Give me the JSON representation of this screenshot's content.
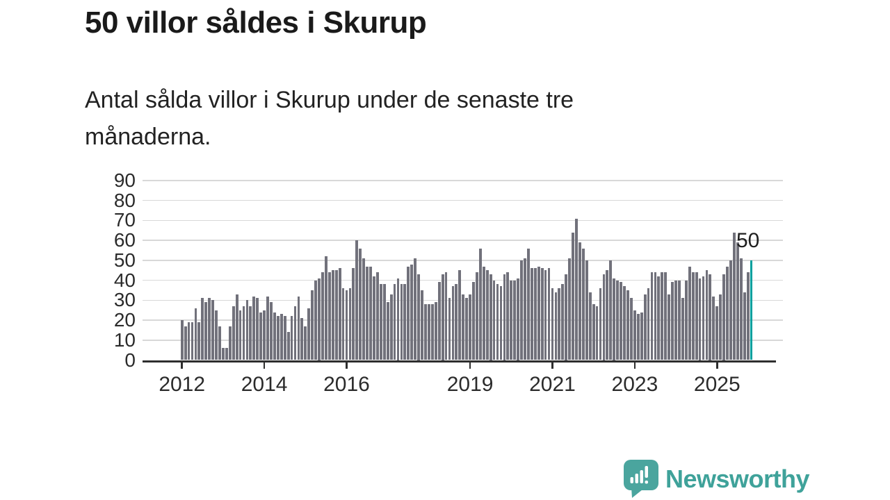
{
  "title": "50 villor såldes i Skurup",
  "subtitle": "Antal sålda villor i Skurup under de senaste tre månaderna.",
  "annotation": {
    "label": "50"
  },
  "logo": {
    "text": "Newsworthy"
  },
  "colors": {
    "bar": "#71717b",
    "highlight": "#00a09e",
    "grid": "#d8d8d8",
    "axis": "#2e2e2e",
    "text": "#1a1a1a",
    "logo": "#3fa29a"
  },
  "chart_data": {
    "type": "bar",
    "title": "50 villor såldes i Skurup",
    "subtitle": "Antal sålda villor i Skurup under de senaste tre månaderna.",
    "frequency": "monthly",
    "x_start": "2012-01",
    "x_end": "2025-11",
    "xlabel": "",
    "ylabel": "",
    "ylim": [
      0,
      90
    ],
    "yticks": [
      0,
      10,
      20,
      30,
      40,
      50,
      60,
      70,
      80,
      90
    ],
    "xtick_years": [
      2012,
      2014,
      2016,
      2019,
      2021,
      2023,
      2025
    ],
    "grid": "horizontal",
    "legend": "none",
    "values": [
      20,
      17,
      19,
      19,
      26,
      19,
      31,
      29,
      31,
      30,
      25,
      17,
      6,
      6,
      17,
      27,
      33,
      25,
      27,
      30,
      27,
      32,
      31,
      24,
      25,
      32,
      29,
      24,
      22,
      23,
      22,
      14,
      22,
      27,
      32,
      21,
      17,
      26,
      35,
      40,
      41,
      44,
      52,
      44,
      45,
      45,
      46,
      36,
      35,
      36,
      46,
      60,
      56,
      51,
      47,
      47,
      42,
      44,
      38,
      38,
      29,
      33,
      38,
      41,
      38,
      38,
      47,
      48,
      51,
      43,
      35,
      28,
      28,
      28,
      29,
      39,
      43,
      44,
      31,
      37,
      38,
      45,
      33,
      31,
      33,
      39,
      44,
      56,
      47,
      45,
      43,
      40,
      38,
      37,
      43,
      44,
      40,
      40,
      41,
      50,
      51,
      56,
      46,
      46,
      47,
      46,
      45,
      46,
      36,
      34,
      36,
      38,
      43,
      51,
      64,
      71,
      59,
      56,
      50,
      34,
      28,
      27,
      36,
      43,
      45,
      50,
      41,
      40,
      39,
      37,
      35,
      31,
      25,
      23,
      24,
      33,
      36,
      44,
      44,
      42,
      44,
      44,
      33,
      39,
      40,
      40,
      31,
      40,
      47,
      44,
      44,
      41,
      42,
      45,
      43,
      32,
      27,
      33,
      43,
      47,
      50,
      64,
      59,
      51,
      34,
      44,
      50
    ],
    "highlight": {
      "position": "last",
      "value": 50,
      "label": "50"
    }
  }
}
